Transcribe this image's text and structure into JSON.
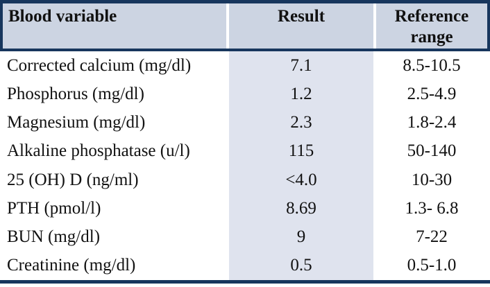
{
  "chart_data": {
    "type": "table",
    "columns": [
      "Blood variable",
      "Result",
      "Reference range"
    ],
    "rows": [
      [
        "Corrected calcium (mg/dl)",
        "7.1",
        "8.5-10.5"
      ],
      [
        "Phosphorus (mg/dl)",
        "1.2",
        "2.5-4.9"
      ],
      [
        "Magnesium (mg/dl)",
        "2.3",
        "1.8-2.4"
      ],
      [
        "Alkaline phosphatase (u/l)",
        "115",
        "50-140"
      ],
      [
        "25 (OH) D (ng/ml)",
        "<4.0",
        "10-30"
      ],
      [
        "PTH (pmol/l)",
        "8.69",
        "1.3- 6.8"
      ],
      [
        "BUN (mg/dl)",
        "9",
        "7-22"
      ],
      [
        "Creatinine (mg/dl)",
        "0.5",
        "0.5-1.0"
      ]
    ]
  },
  "colors": {
    "border_navy": "#17365d",
    "header_bg": "#ccd4e2",
    "result_column_bg": "#dfe3ee",
    "text": "#111111"
  }
}
